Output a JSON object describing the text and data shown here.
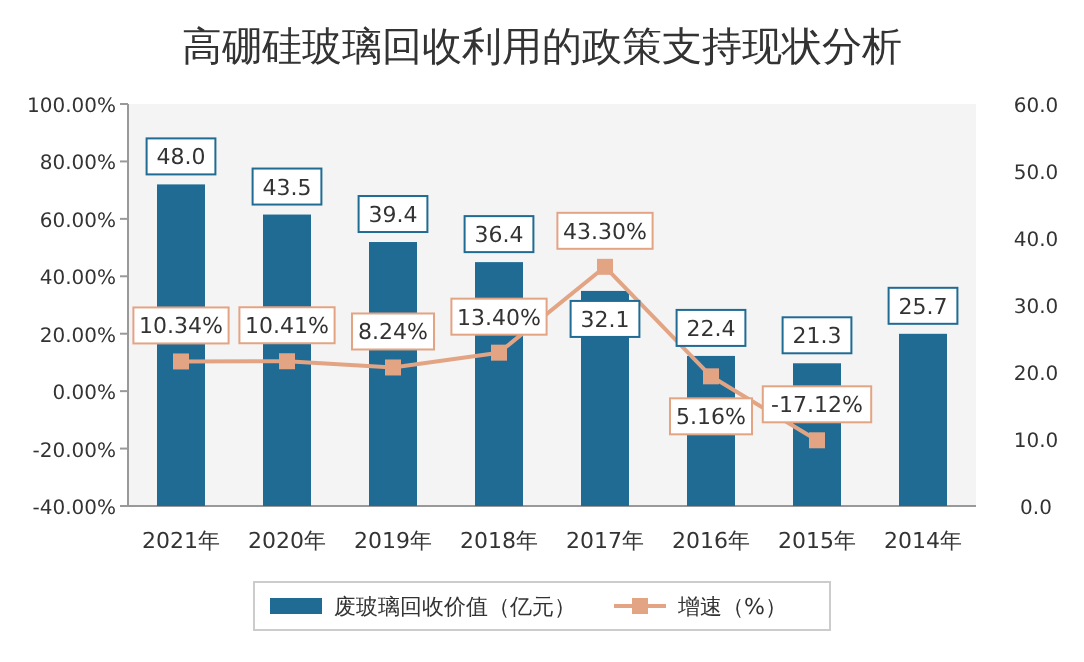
{
  "chart_data": {
    "type": "bar",
    "title": "高硼硅玻璃回收利用的政策支持现状分析",
    "categories": [
      "2021年",
      "2020年",
      "2019年",
      "2018年",
      "2017年",
      "2016年",
      "2015年",
      "2014年"
    ],
    "series": [
      {
        "name": "废玻璃回收价值（亿元）",
        "type": "bar",
        "axis": "y2",
        "color": "#1f6b94",
        "values": [
          48.0,
          43.5,
          39.4,
          36.4,
          32.1,
          22.4,
          21.3,
          25.7
        ],
        "value_labels": [
          "48.0",
          "43.5",
          "39.4",
          "36.4",
          "32.1",
          "22.4",
          "21.3",
          "25.7"
        ]
      },
      {
        "name": "增速（%）",
        "type": "line",
        "color": "#e3a484",
        "values": [
          10.34,
          10.41,
          8.24,
          13.4,
          43.3,
          5.16,
          -17.12,
          null
        ],
        "value_labels": [
          "10.34%",
          "10.41%",
          "8.24%",
          "13.40%",
          "43.30%",
          "5.16%",
          "-17.12%",
          null
        ]
      }
    ],
    "ylim": [
      -40,
      100
    ],
    "yticks": [
      {
        "value": -40,
        "label": "-40.00%"
      },
      {
        "value": -20,
        "label": "-20.00%"
      },
      {
        "value": 0,
        "label": "0.00%"
      },
      {
        "value": 20,
        "label": "20.00%"
      },
      {
        "value": 40,
        "label": "40.00%"
      },
      {
        "value": 60,
        "label": "60.00%"
      },
      {
        "value": 80,
        "label": "80.00%"
      },
      {
        "value": 100,
        "label": "100.00%"
      }
    ],
    "y2lim": [
      0,
      60
    ],
    "y2ticks": [
      {
        "value": 0,
        "label": "0.0"
      },
      {
        "value": 10,
        "label": "10.0"
      },
      {
        "value": 20,
        "label": "20.0"
      },
      {
        "value": 30,
        "label": "30.0"
      },
      {
        "value": 40,
        "label": "40.0"
      },
      {
        "value": 50,
        "label": "50.0"
      },
      {
        "value": 60,
        "label": "60.0"
      }
    ],
    "marker": "square",
    "legend": "bottom"
  }
}
